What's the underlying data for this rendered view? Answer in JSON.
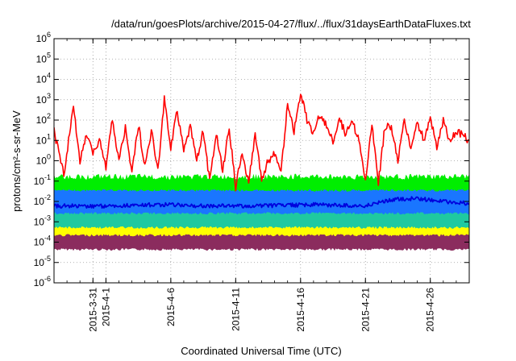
{
  "chart_data": {
    "type": "area",
    "title": "/data/run/goesPlots/archive/2015-04-27/flux/../flux/31daysEarthDataFluxes.txt",
    "xlabel": "Coordinated Universal Time (UTC)",
    "ylabel": "protons/cm²-s-sr-MeV",
    "yscale": "log",
    "ylim": [
      1e-06,
      1000000.0
    ],
    "xlim": [
      "2015-03-28",
      "2015-04-29"
    ],
    "grid": true,
    "y_ticks": [
      {
        "value": 1e-06,
        "base": "10",
        "exp": "-6"
      },
      {
        "value": 1e-05,
        "base": "10",
        "exp": "-5"
      },
      {
        "value": 0.0001,
        "base": "10",
        "exp": "-4"
      },
      {
        "value": 0.001,
        "base": "10",
        "exp": "-3"
      },
      {
        "value": 0.01,
        "base": "10",
        "exp": "-2"
      },
      {
        "value": 0.1,
        "base": "10",
        "exp": "-1"
      },
      {
        "value": 1,
        "base": "10",
        "exp": "0"
      },
      {
        "value": 10,
        "base": "10",
        "exp": "1"
      },
      {
        "value": 100,
        "base": "10",
        "exp": "2"
      },
      {
        "value": 1000,
        "base": "10",
        "exp": "3"
      },
      {
        "value": 10000,
        "base": "10",
        "exp": "4"
      },
      {
        "value": 100000,
        "base": "10",
        "exp": "5"
      },
      {
        "value": 1000000,
        "base": "10",
        "exp": "6"
      }
    ],
    "x_ticks": [
      {
        "date": "2015-03-31",
        "label": "2015-3-31"
      },
      {
        "date": "2015-04-01",
        "label": "2015-4-1"
      },
      {
        "date": "2015-04-06",
        "label": "2015-4-6"
      },
      {
        "date": "2015-04-11",
        "label": "2015-4-11"
      },
      {
        "date": "2015-04-16",
        "label": "2015-4-16"
      },
      {
        "date": "2015-04-21",
        "label": "2015-4-21"
      },
      {
        "date": "2015-04-26",
        "label": "2015-4-26"
      }
    ],
    "series": [
      {
        "color": "#8b2c5e",
        "style": "band",
        "low": 5e-05,
        "high": 0.00025
      },
      {
        "color": "#ffff00",
        "style": "band",
        "low": 0.00025,
        "high": 0.0006
      },
      {
        "color": "#1fc9a0",
        "style": "band",
        "low": 0.0006,
        "high": 0.003
      },
      {
        "color": "#1a76ff",
        "style": "band",
        "low": 0.003,
        "high": 0.04
      },
      {
        "color": "#00ee00",
        "style": "band",
        "low": 0.04,
        "high": 0.12
      },
      {
        "color": "#0000dd",
        "style": "line",
        "points": [
          [
            "2015-03-28",
            0.006
          ],
          [
            "2015-04-01",
            0.006
          ],
          [
            "2015-04-05",
            0.007
          ],
          [
            "2015-04-09",
            0.006
          ],
          [
            "2015-04-13",
            0.006
          ],
          [
            "2015-04-17",
            0.007
          ],
          [
            "2015-04-21",
            0.006
          ],
          [
            "2015-04-23",
            0.012
          ],
          [
            "2015-04-25",
            0.014
          ],
          [
            "2015-04-27",
            0.01
          ],
          [
            "2015-04-29",
            0.008
          ]
        ]
      },
      {
        "color": "#ff0000",
        "style": "line",
        "points": [
          [
            "2015-03-28",
            30
          ],
          [
            "2015-03-28T18:00",
            0.2
          ],
          [
            "2015-03-29T12:00",
            500
          ],
          [
            "2015-03-30",
            1
          ],
          [
            "2015-03-30T12:00",
            20
          ],
          [
            "2015-03-31",
            2
          ],
          [
            "2015-03-31T12:00",
            10
          ],
          [
            "2015-04-01",
            0.5
          ],
          [
            "2015-04-01T12:00",
            100
          ],
          [
            "2015-04-02",
            1
          ],
          [
            "2015-04-02T12:00",
            40
          ],
          [
            "2015-04-03",
            0.3
          ],
          [
            "2015-04-03T12:00",
            60
          ],
          [
            "2015-04-04",
            0.5
          ],
          [
            "2015-04-04T12:00",
            30
          ],
          [
            "2015-04-05",
            0.3
          ],
          [
            "2015-04-05T12:00",
            1000
          ],
          [
            "2015-04-06",
            5
          ],
          [
            "2015-04-06T12:00",
            300
          ],
          [
            "2015-04-07",
            3
          ],
          [
            "2015-04-07T12:00",
            50
          ],
          [
            "2015-04-08",
            1
          ],
          [
            "2015-04-08T12:00",
            30
          ],
          [
            "2015-04-09",
            0.1
          ],
          [
            "2015-04-09T12:00",
            20
          ],
          [
            "2015-04-10",
            0.3
          ],
          [
            "2015-04-10T12:00",
            40
          ],
          [
            "2015-04-11",
            0.05
          ],
          [
            "2015-04-11T12:00",
            3
          ],
          [
            "2015-04-12",
            0.08
          ],
          [
            "2015-04-12T12:00",
            20
          ],
          [
            "2015-04-13",
            0.1
          ],
          [
            "2015-04-13T12:00",
            1
          ],
          [
            "2015-04-14",
            2
          ],
          [
            "2015-04-14T12:00",
            0.3
          ],
          [
            "2015-04-15",
            500
          ],
          [
            "2015-04-15T12:00",
            30
          ],
          [
            "2015-04-16",
            2000
          ],
          [
            "2015-04-16T12:00",
            100
          ],
          [
            "2015-04-17",
            20
          ],
          [
            "2015-04-17T12:00",
            200
          ],
          [
            "2015-04-18",
            50
          ],
          [
            "2015-04-18T12:00",
            10
          ],
          [
            "2015-04-19",
            100
          ],
          [
            "2015-04-19T12:00",
            20
          ],
          [
            "2015-04-20",
            80
          ],
          [
            "2015-04-20T12:00",
            10
          ],
          [
            "2015-04-21",
            0.1
          ],
          [
            "2015-04-21T12:00",
            60
          ],
          [
            "2015-04-22",
            0.08
          ],
          [
            "2015-04-22T12:00",
            50
          ],
          [
            "2015-04-23",
            40
          ],
          [
            "2015-04-23T12:00",
            1
          ],
          [
            "2015-04-24",
            100
          ],
          [
            "2015-04-24T12:00",
            3
          ],
          [
            "2015-04-25",
            80
          ],
          [
            "2015-04-25T12:00",
            10
          ],
          [
            "2015-04-26",
            150
          ],
          [
            "2015-04-26T12:00",
            5
          ],
          [
            "2015-04-27",
            100
          ],
          [
            "2015-04-27T12:00",
            8
          ],
          [
            "2015-04-28",
            30
          ],
          [
            "2015-04-29",
            10
          ]
        ]
      }
    ]
  }
}
